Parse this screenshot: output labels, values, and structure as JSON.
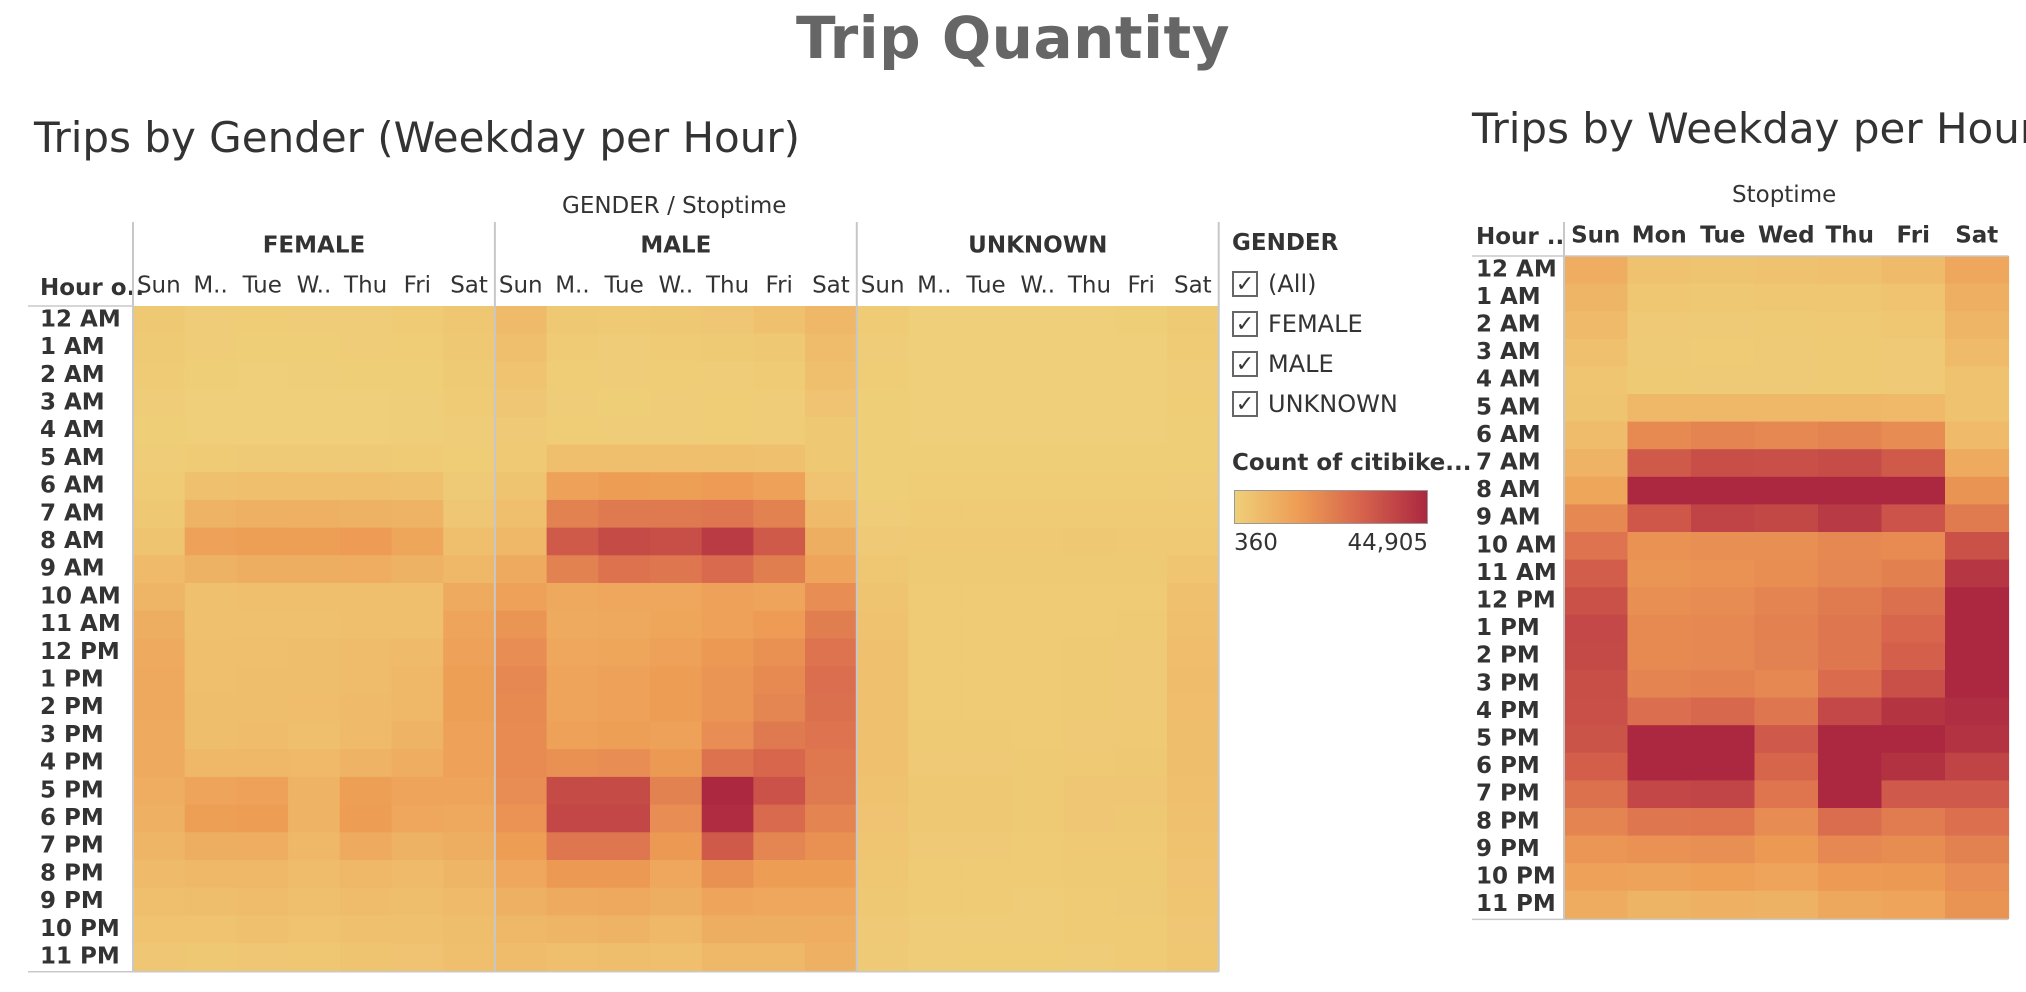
{
  "page": {
    "title": "Trip Quantity"
  },
  "colors": {
    "low": "#efcf79",
    "mid1": "#ee9d55",
    "mid2": "#d6634c",
    "high": "#ac2840"
  },
  "legend": {
    "title": "GENDER",
    "items": [
      "(All)",
      "FEMALE",
      "MALE",
      "UNKNOWN"
    ],
    "color_title": "Count of citibike...",
    "min_label": "360",
    "max_label": "44,905",
    "min": 360,
    "max": 44905
  },
  "chart_data": [
    {
      "type": "heatmap",
      "title": "Trips by Gender (Weekday per Hour)",
      "column_group_title": "GENDER / Stoptime",
      "row_header": "Hour o..",
      "groups": [
        "FEMALE",
        "MALE",
        "UNKNOWN"
      ],
      "day_labels": [
        "Sun",
        "M..",
        "Tue",
        "W..",
        "Thu",
        "Fri",
        "Sat"
      ],
      "hours": [
        "12 AM",
        "1 AM",
        "2 AM",
        "3 AM",
        "4 AM",
        "5 AM",
        "6 AM",
        "7 AM",
        "8 AM",
        "9 AM",
        "10 AM",
        "11 AM",
        "12 PM",
        "1 PM",
        "2 PM",
        "3 PM",
        "4 PM",
        "5 PM",
        "6 PM",
        "7 PM",
        "8 PM",
        "9 PM",
        "10 PM",
        "11 PM"
      ],
      "values": {
        "FEMALE": [
          [
            2500,
            1200,
            1000,
            1100,
            1300,
            1500,
            2800
          ],
          [
            1900,
            900,
            700,
            800,
            900,
            1000,
            2300
          ],
          [
            1500,
            600,
            500,
            550,
            600,
            700,
            1900
          ],
          [
            1100,
            500,
            400,
            450,
            500,
            550,
            1400
          ],
          [
            800,
            500,
            450,
            450,
            500,
            550,
            900
          ],
          [
            900,
            1600,
            1700,
            1700,
            1700,
            1600,
            1000
          ],
          [
            1500,
            4800,
            5200,
            5000,
            5000,
            4600,
            1700
          ],
          [
            2400,
            8500,
            9500,
            9200,
            9000,
            8500,
            3000
          ],
          [
            3500,
            13500,
            14500,
            14500,
            15500,
            12500,
            5200
          ],
          [
            6500,
            9000,
            10000,
            10000,
            10500,
            9000,
            7500
          ],
          [
            8000,
            4800,
            5000,
            5000,
            5200,
            5000,
            11000
          ],
          [
            10000,
            4500,
            4800,
            4800,
            5000,
            5200,
            13000
          ],
          [
            11000,
            5000,
            5200,
            5500,
            5800,
            6500,
            14000
          ],
          [
            11500,
            5200,
            5300,
            5500,
            6000,
            7000,
            14500
          ],
          [
            11500,
            5300,
            5400,
            5600,
            6200,
            7500,
            14500
          ],
          [
            11000,
            5500,
            5800,
            5000,
            6500,
            8500,
            14000
          ],
          [
            10800,
            7000,
            7500,
            6800,
            8500,
            10500,
            13500
          ],
          [
            10500,
            13000,
            13500,
            8500,
            14500,
            13000,
            13000
          ],
          [
            9500,
            14500,
            15000,
            8500,
            15000,
            12000,
            11500
          ],
          [
            8000,
            10000,
            10500,
            7500,
            11000,
            9000,
            10000
          ],
          [
            6500,
            7000,
            7500,
            6000,
            7500,
            6500,
            8000
          ],
          [
            5000,
            5500,
            5800,
            5000,
            5800,
            5500,
            6500
          ],
          [
            4000,
            4000,
            4500,
            4000,
            4500,
            4500,
            5500
          ],
          [
            3000,
            2500,
            3000,
            2800,
            3500,
            3800,
            5000
          ]
        ],
        "MALE": [
          [
            6500,
            2500,
            2200,
            2500,
            3000,
            4500,
            7500
          ],
          [
            5000,
            1500,
            1300,
            1500,
            1800,
            2500,
            6000
          ],
          [
            4000,
            1000,
            900,
            1000,
            1200,
            1600,
            5000
          ],
          [
            3000,
            900,
            800,
            900,
            1000,
            1200,
            3800
          ],
          [
            2000,
            1000,
            900,
            900,
            1000,
            1100,
            2500
          ],
          [
            2200,
            5000,
            5200,
            5200,
            5100,
            4600,
            2500
          ],
          [
            3500,
            14000,
            15000,
            14500,
            15500,
            13500,
            3800
          ],
          [
            5000,
            22000,
            24000,
            24000,
            25000,
            22000,
            6500
          ],
          [
            7000,
            32000,
            36000,
            35000,
            40000,
            32000,
            10000
          ],
          [
            11000,
            22000,
            26000,
            25000,
            28000,
            23000,
            13000
          ],
          [
            14000,
            11500,
            12000,
            12000,
            13500,
            13000,
            19000
          ],
          [
            17000,
            11000,
            11500,
            12500,
            14000,
            15500,
            23000
          ],
          [
            19000,
            12000,
            12500,
            14000,
            16000,
            18000,
            25500
          ],
          [
            20500,
            13000,
            13500,
            15000,
            17000,
            20000,
            27000
          ],
          [
            20000,
            13000,
            13500,
            15000,
            17000,
            21000,
            26500
          ],
          [
            19500,
            14000,
            14500,
            14000,
            19000,
            24000,
            25500
          ],
          [
            19500,
            18000,
            19000,
            16000,
            26000,
            29000,
            24500
          ],
          [
            19000,
            36000,
            36000,
            22000,
            44905,
            34000,
            24000
          ],
          [
            17500,
            37000,
            37000,
            19000,
            44000,
            28000,
            21500
          ],
          [
            15000,
            25000,
            25000,
            16000,
            32000,
            21000,
            18000
          ],
          [
            12000,
            16000,
            16000,
            12000,
            18000,
            15000,
            15000
          ],
          [
            9500,
            11000,
            11500,
            10000,
            13000,
            12000,
            12000
          ],
          [
            7500,
            8000,
            8500,
            7500,
            10000,
            10000,
            10500
          ],
          [
            6000,
            5000,
            5500,
            5200,
            7000,
            7500,
            9500
          ]
        ],
        "UNKNOWN": [
          [
            1500,
            500,
            500,
            500,
            500,
            600,
            1800
          ],
          [
            1200,
            400,
            400,
            400,
            400,
            500,
            1500
          ],
          [
            1000,
            400,
            360,
            360,
            400,
            400,
            1200
          ],
          [
            800,
            360,
            360,
            360,
            360,
            400,
            1000
          ],
          [
            600,
            400,
            400,
            400,
            400,
            400,
            700
          ],
          [
            600,
            600,
            600,
            600,
            600,
            600,
            700
          ],
          [
            800,
            1000,
            1000,
            1000,
            1000,
            1000,
            900
          ],
          [
            1200,
            1500,
            1500,
            1500,
            1500,
            1500,
            1400
          ],
          [
            2000,
            2200,
            2200,
            2200,
            2400,
            2200,
            2200
          ],
          [
            2800,
            1800,
            1800,
            1800,
            1900,
            1800,
            3200
          ],
          [
            3500,
            1500,
            1500,
            1500,
            1600,
            1600,
            4500
          ],
          [
            4200,
            1500,
            1500,
            1500,
            1600,
            1800,
            5200
          ],
          [
            4500,
            1600,
            1600,
            1600,
            1800,
            2000,
            5600
          ],
          [
            4600,
            1600,
            1600,
            1600,
            1800,
            2100,
            5800
          ],
          [
            4600,
            1600,
            1600,
            1600,
            1800,
            2100,
            5700
          ],
          [
            4500,
            1800,
            1800,
            1500,
            2000,
            2200,
            5500
          ],
          [
            4400,
            2000,
            2000,
            1800,
            2200,
            2400,
            5300
          ],
          [
            4200,
            2500,
            2500,
            1800,
            2600,
            2600,
            5000
          ],
          [
            3800,
            2400,
            2400,
            1800,
            2600,
            2400,
            4600
          ],
          [
            3200,
            2000,
            2000,
            1600,
            2200,
            2200,
            4200
          ],
          [
            2800,
            1600,
            1600,
            1400,
            1800,
            1900,
            3800
          ],
          [
            2400,
            1400,
            1400,
            1200,
            1600,
            1700,
            3400
          ],
          [
            2000,
            1200,
            1200,
            1100,
            1400,
            1600,
            3000
          ],
          [
            1700,
            900,
            1000,
            1000,
            1200,
            1400,
            2800
          ]
        ]
      }
    },
    {
      "type": "heatmap",
      "title": "Trips by Weekday per Hour",
      "column_group_title": "Stoptime",
      "row_header": "Hour ..",
      "day_labels": [
        "Sun",
        "Mon",
        "Tue",
        "Wed",
        "Thu",
        "Fri",
        "Sat"
      ],
      "hours": [
        "12 AM",
        "1 AM",
        "2 AM",
        "3 AM",
        "4 AM",
        "5 AM",
        "6 AM",
        "7 AM",
        "8 AM",
        "9 AM",
        "10 AM",
        "11 AM",
        "12 PM",
        "1 PM",
        "2 PM",
        "3 PM",
        "4 PM",
        "5 PM",
        "6 PM",
        "7 PM",
        "8 PM",
        "9 PM",
        "10 PM",
        "11 PM"
      ],
      "values": [
        [
          10500,
          4200,
          3700,
          4100,
          4800,
          6600,
          12100
        ],
        [
          8100,
          2800,
          2400,
          2700,
          3100,
          4000,
          9800
        ],
        [
          6500,
          2000,
          1760,
          1910,
          2200,
          2700,
          8100
        ],
        [
          4900,
          1760,
          1560,
          1710,
          1860,
          2150,
          6200
        ],
        [
          3400,
          1900,
          1750,
          1750,
          1900,
          2050,
          4100
        ],
        [
          3700,
          7200,
          7500,
          7500,
          7400,
          6800,
          4200
        ],
        [
          5800,
          19800,
          21200,
          20500,
          21500,
          19100,
          6400
        ],
        [
          8600,
          32000,
          35000,
          34700,
          35500,
          32000,
          10900
        ],
        [
          12500,
          47700,
          52700,
          51700,
          57900,
          46700,
          17400
        ],
        [
          20300,
          32800,
          37800,
          36800,
          40400,
          33800,
          23700
        ],
        [
          25500,
          17800,
          18500,
          18500,
          20300,
          19600,
          34500
        ],
        [
          31200,
          17000,
          17800,
          18800,
          20600,
          22500,
          41200
        ],
        [
          34500,
          18600,
          19300,
          21100,
          23600,
          26500,
          45100
        ],
        [
          36600,
          19800,
          20400,
          22100,
          24800,
          29100,
          47300
        ],
        [
          36100,
          19900,
          20500,
          22200,
          25000,
          30600,
          46700
        ],
        [
          35000,
          21300,
          22100,
          20500,
          27500,
          34700,
          45000
        ],
        [
          34700,
          27000,
          28500,
          24600,
          36700,
          41900,
          43300
        ],
        [
          33700,
          51500,
          52000,
          32300,
          62000,
          49600,
          42000
        ],
        [
          30800,
          53900,
          54400,
          29300,
          61600,
          42400,
          37600
        ],
        [
          26200,
          37000,
          37500,
          25100,
          45200,
          32200,
          32200
        ],
        [
          21300,
          24600,
          25100,
          19400,
          27300,
          23400,
          26800
        ],
        [
          16900,
          17900,
          18700,
          16200,
          20400,
          19200,
          21900
        ],
        [
          13500,
          13200,
          14200,
          12600,
          15900,
          16100,
          19000
        ],
        [
          10700,
          8400,
          9500,
          9000,
          11700,
          12700,
          17300
        ]
      ]
    }
  ]
}
